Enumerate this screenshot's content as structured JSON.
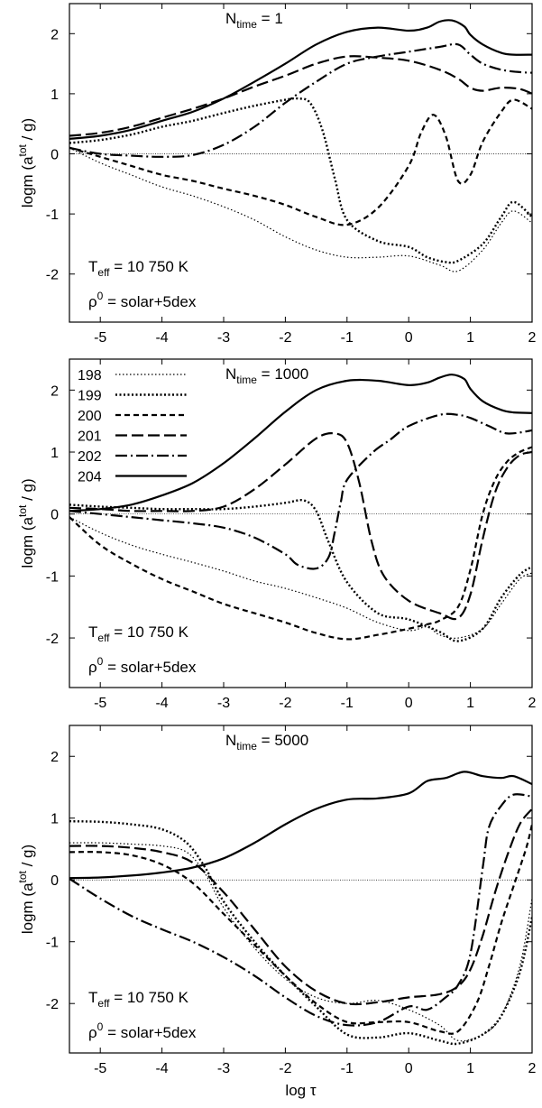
{
  "chart_data": [
    {
      "type": "line",
      "title_main": "N",
      "title_sub": "time",
      "title_tail": " = 1",
      "xlim": [
        -5.5,
        2
      ],
      "ylim": [
        -2.8,
        2.5
      ],
      "xticks": [
        "-5",
        "-4",
        "-3",
        "-2",
        "-1",
        "0",
        "1",
        "2"
      ],
      "yticks": [
        "-2",
        "-1",
        "0",
        "1",
        "2"
      ],
      "ylabel_main": "logm (a",
      "ylabel_sup": "tot",
      "ylabel_tail": " / g)",
      "xlabel_main": "",
      "xlabel_greek": "",
      "annot_teff": {
        "main": "T",
        "sub": "eff",
        "tail": " = 10 750 K"
      },
      "annot_rho": {
        "main": "ρ",
        "sup": "0",
        "tail": " = solar+5dex"
      },
      "legend": [],
      "series": [
        {
          "name": "198",
          "x": [
            -5.5,
            -5,
            -4.5,
            -4,
            -3.5,
            -3,
            -2.5,
            -2,
            -1.5,
            -1,
            -0.5,
            0,
            0.5,
            0.8,
            1.2,
            1.5,
            1.7,
            2
          ],
          "y": [
            0.1,
            -0.15,
            -0.35,
            -0.55,
            -0.7,
            -0.88,
            -1.1,
            -1.38,
            -1.6,
            -1.72,
            -1.72,
            -1.7,
            -1.85,
            -1.95,
            -1.6,
            -1.15,
            -0.95,
            -1.15
          ]
        },
        {
          "name": "199",
          "x": [
            -5.5,
            -5,
            -4.5,
            -4,
            -3.5,
            -3,
            -2.5,
            -2,
            -1.8,
            -1.6,
            -1.4,
            -1.2,
            -1,
            -0.5,
            0,
            0.3,
            0.6,
            0.8,
            1.2,
            1.5,
            1.7,
            2
          ],
          "y": [
            0.18,
            0.23,
            0.32,
            0.45,
            0.55,
            0.68,
            0.8,
            0.9,
            0.92,
            0.85,
            0.4,
            -0.4,
            -1.1,
            -1.45,
            -1.55,
            -1.72,
            -1.8,
            -1.78,
            -1.5,
            -1.05,
            -0.8,
            -1.05
          ]
        },
        {
          "name": "200",
          "x": [
            -5.5,
            -5,
            -4.5,
            -4,
            -3.5,
            -3,
            -2.5,
            -2,
            -1.5,
            -1,
            -0.5,
            0,
            0.2,
            0.4,
            0.6,
            0.8,
            1,
            1.2,
            1.5,
            1.7,
            2
          ],
          "y": [
            0.1,
            -0.05,
            -0.2,
            -0.35,
            -0.45,
            -0.58,
            -0.7,
            -0.85,
            -1.05,
            -1.18,
            -0.9,
            -0.2,
            0.35,
            0.65,
            0.3,
            -0.45,
            -0.35,
            0.2,
            0.7,
            0.9,
            0.75
          ]
        },
        {
          "name": "201",
          "x": [
            -5.5,
            -5,
            -4.5,
            -4,
            -3.5,
            -3,
            -2.5,
            -2,
            -1.5,
            -1,
            -0.5,
            0,
            0.5,
            0.8,
            1,
            1.2,
            1.5,
            1.8,
            2
          ],
          "y": [
            0.3,
            0.35,
            0.45,
            0.6,
            0.75,
            0.92,
            1.12,
            1.3,
            1.5,
            1.62,
            1.6,
            1.55,
            1.4,
            1.25,
            1.1,
            1.05,
            1.1,
            1.08,
            1.0
          ]
        },
        {
          "name": "202",
          "x": [
            -5.5,
            -5,
            -4.5,
            -4,
            -3.5,
            -3,
            -2.5,
            -2,
            -1.5,
            -1,
            -0.5,
            0,
            0.5,
            0.8,
            1,
            1.2,
            1.5,
            1.8,
            2
          ],
          "y": [
            0.1,
            0.0,
            -0.03,
            -0.05,
            -0.02,
            0.15,
            0.45,
            0.85,
            1.2,
            1.5,
            1.62,
            1.7,
            1.78,
            1.82,
            1.65,
            1.5,
            1.4,
            1.36,
            1.35
          ]
        },
        {
          "name": "204",
          "x": [
            -5.5,
            -5,
            -4.5,
            -4,
            -3.5,
            -3,
            -2.5,
            -2,
            -1.5,
            -1,
            -0.5,
            0,
            0.3,
            0.5,
            0.7,
            0.9,
            1,
            1.2,
            1.5,
            1.7,
            2
          ],
          "y": [
            0.25,
            0.3,
            0.4,
            0.55,
            0.7,
            0.92,
            1.2,
            1.5,
            1.82,
            2.03,
            2.1,
            2.05,
            2.1,
            2.2,
            2.22,
            2.12,
            1.98,
            1.82,
            1.68,
            1.65,
            1.65
          ]
        }
      ]
    },
    {
      "type": "line",
      "title_main": "N",
      "title_sub": "time",
      "title_tail": " = 1000",
      "xlim": [
        -5.5,
        2
      ],
      "ylim": [
        -2.8,
        2.5
      ],
      "xticks": [
        "-5",
        "-4",
        "-3",
        "-2",
        "-1",
        "0",
        "1",
        "2"
      ],
      "yticks": [
        "-2",
        "-1",
        "0",
        "1",
        "2"
      ],
      "ylabel_main": "logm (a",
      "ylabel_sup": "tot",
      "ylabel_tail": " / g)",
      "xlabel_main": "",
      "xlabel_greek": "",
      "annot_teff": {
        "main": "T",
        "sub": "eff",
        "tail": " = 10 750 K"
      },
      "annot_rho": {
        "main": "ρ",
        "sup": "0",
        "tail": " = solar+5dex"
      },
      "legend": [
        "198",
        "199",
        "200",
        "201",
        "202",
        "204"
      ],
      "series": [
        {
          "name": "198",
          "x": [
            -5.5,
            -5,
            -4.5,
            -4,
            -3.5,
            -3,
            -2.5,
            -2,
            -1.5,
            -1,
            -0.5,
            0,
            0.3,
            0.5,
            0.8,
            1.2,
            1.5,
            1.8,
            2
          ],
          "y": [
            -0.05,
            -0.3,
            -0.5,
            -0.65,
            -0.78,
            -0.92,
            -1.08,
            -1.2,
            -1.35,
            -1.52,
            -1.75,
            -1.88,
            -1.82,
            -1.95,
            -2.0,
            -1.85,
            -1.45,
            -1.05,
            -0.95
          ]
        },
        {
          "name": "199",
          "x": [
            -5.5,
            -5,
            -4.5,
            -4,
            -3.5,
            -3,
            -2.5,
            -2,
            -1.7,
            -1.5,
            -1.3,
            -1,
            -0.5,
            0,
            0.5,
            0.8,
            1.2,
            1.5,
            1.8,
            2
          ],
          "y": [
            0.15,
            0.12,
            0.1,
            0.08,
            0.08,
            0.08,
            0.12,
            0.18,
            0.22,
            0.05,
            -0.45,
            -1.1,
            -1.6,
            -1.7,
            -1.9,
            -2.05,
            -1.85,
            -1.35,
            -0.98,
            -0.85
          ]
        },
        {
          "name": "200",
          "x": [
            -5.5,
            -5,
            -4.5,
            -4,
            -3.5,
            -3,
            -2.5,
            -2,
            -1.5,
            -1,
            -0.5,
            0,
            0.3,
            0.5,
            0.8,
            1,
            1.2,
            1.4,
            1.6,
            1.8,
            2
          ],
          "y": [
            -0.05,
            -0.5,
            -0.8,
            -1.05,
            -1.25,
            -1.45,
            -1.6,
            -1.75,
            -1.92,
            -2.02,
            -1.95,
            -1.85,
            -1.78,
            -1.72,
            -1.5,
            -0.9,
            0.0,
            0.55,
            0.85,
            1.0,
            1.08
          ]
        },
        {
          "name": "201",
          "x": [
            -5.5,
            -5,
            -4.5,
            -4,
            -3.5,
            -3,
            -2.5,
            -2,
            -1.5,
            -1.2,
            -1,
            -0.8,
            -0.6,
            -0.4,
            0,
            0.5,
            0.8,
            1,
            1.2,
            1.4,
            1.6,
            1.8,
            2
          ],
          "y": [
            0.1,
            0.08,
            0.05,
            0.05,
            0.05,
            0.12,
            0.4,
            0.8,
            1.22,
            1.3,
            1.15,
            0.5,
            -0.45,
            -1.0,
            -1.4,
            -1.6,
            -1.68,
            -1.3,
            -0.4,
            0.35,
            0.75,
            0.95,
            1.0
          ]
        },
        {
          "name": "202",
          "x": [
            -5.5,
            -5,
            -4.5,
            -4,
            -3.5,
            -3,
            -2.5,
            -2,
            -1.8,
            -1.5,
            -1.3,
            -1.2,
            -1.1,
            -1,
            -0.6,
            -0.3,
            0,
            0.5,
            0.8,
            1,
            1.3,
            1.6,
            2
          ],
          "y": [
            0.05,
            0.0,
            -0.05,
            -0.1,
            -0.15,
            -0.22,
            -0.38,
            -0.65,
            -0.82,
            -0.88,
            -0.7,
            -0.3,
            0.2,
            0.55,
            0.98,
            1.2,
            1.42,
            1.6,
            1.6,
            1.55,
            1.42,
            1.3,
            1.35
          ]
        },
        {
          "name": "204",
          "x": [
            -5.5,
            -5,
            -4.5,
            -4,
            -3.5,
            -3,
            -2.5,
            -2,
            -1.5,
            -1,
            -0.5,
            0,
            0.3,
            0.5,
            0.7,
            0.9,
            1,
            1.2,
            1.5,
            1.7,
            2
          ],
          "y": [
            0.05,
            0.08,
            0.15,
            0.3,
            0.5,
            0.82,
            1.22,
            1.65,
            2.0,
            2.15,
            2.15,
            2.08,
            2.12,
            2.2,
            2.25,
            2.18,
            2.02,
            1.82,
            1.68,
            1.64,
            1.63
          ]
        }
      ]
    },
    {
      "type": "line",
      "title_main": "N",
      "title_sub": "time",
      "title_tail": " = 5000",
      "xlim": [
        -5.5,
        2
      ],
      "ylim": [
        -2.8,
        2.5
      ],
      "xticks": [
        "-5",
        "-4",
        "-3",
        "-2",
        "-1",
        "0",
        "1",
        "2"
      ],
      "yticks": [
        "-2",
        "-1",
        "0",
        "1",
        "2"
      ],
      "ylabel_main": "logm (a",
      "ylabel_sup": "tot",
      "ylabel_tail": " / g)",
      "xlabel_main": "log ",
      "xlabel_greek": "τ",
      "annot_teff": {
        "main": "T",
        "sub": "eff",
        "tail": " = 10 750 K"
      },
      "annot_rho": {
        "main": "ρ",
        "sup": "0",
        "tail": " = solar+5dex"
      },
      "legend": [],
      "series": [
        {
          "name": "198",
          "x": [
            -5.5,
            -5,
            -4.5,
            -4,
            -3.6,
            -3.3,
            -3,
            -2.5,
            -2,
            -1.5,
            -1,
            -0.5,
            0,
            0.5,
            0.8,
            1.2,
            1.5,
            1.8,
            2
          ],
          "y": [
            0.6,
            0.6,
            0.58,
            0.55,
            0.45,
            0.1,
            -0.45,
            -1.1,
            -1.6,
            -1.9,
            -2.0,
            -1.95,
            -2.1,
            -2.35,
            -2.6,
            -2.5,
            -2.2,
            -1.4,
            -0.3
          ]
        },
        {
          "name": "199",
          "x": [
            -5.5,
            -5,
            -4.5,
            -4,
            -3.6,
            -3.3,
            -3,
            -2.5,
            -2,
            -1.5,
            -1,
            -0.5,
            0,
            0.5,
            0.8,
            1.2,
            1.5,
            1.8,
            2
          ],
          "y": [
            0.95,
            0.94,
            0.9,
            0.82,
            0.6,
            0.2,
            -0.35,
            -1.0,
            -1.55,
            -2.05,
            -2.5,
            -2.55,
            -2.48,
            -2.6,
            -2.65,
            -2.5,
            -2.2,
            -1.5,
            -0.6
          ]
        },
        {
          "name": "200",
          "x": [
            -5.5,
            -5,
            -4.5,
            -4,
            -3.5,
            -3,
            -2.5,
            -2,
            -1.5,
            -1,
            -0.5,
            0,
            0.5,
            0.8,
            1.1,
            1.3,
            1.5,
            1.7,
            1.9,
            2
          ],
          "y": [
            0.45,
            0.45,
            0.4,
            0.25,
            -0.05,
            -0.55,
            -1.05,
            -1.55,
            -2.0,
            -2.3,
            -2.3,
            -2.3,
            -2.45,
            -2.45,
            -2.0,
            -1.4,
            -0.7,
            -0.1,
            0.5,
            0.9
          ]
        },
        {
          "name": "201",
          "x": [
            -5.5,
            -5,
            -4.5,
            -4,
            -3.5,
            -3,
            -2.5,
            -2,
            -1.5,
            -1,
            -0.5,
            0,
            0.5,
            0.8,
            1,
            1.2,
            1.4,
            1.6,
            1.8,
            2
          ],
          "y": [
            0.55,
            0.55,
            0.52,
            0.45,
            0.28,
            -0.2,
            -0.8,
            -1.4,
            -1.8,
            -2.0,
            -1.98,
            -1.9,
            -1.85,
            -1.72,
            -1.45,
            -0.9,
            -0.2,
            0.4,
            0.9,
            1.15
          ]
        },
        {
          "name": "202",
          "x": [
            -5.5,
            -5,
            -4.5,
            -4,
            -3.5,
            -3,
            -2.5,
            -2,
            -1.5,
            -1,
            -0.5,
            0,
            0.3,
            0.6,
            0.8,
            1,
            1.2,
            1.3,
            1.5,
            1.7,
            2
          ],
          "y": [
            0.02,
            -0.3,
            -0.58,
            -0.8,
            -1.0,
            -1.25,
            -1.55,
            -1.9,
            -2.2,
            -2.35,
            -2.3,
            -2.05,
            -2.1,
            -1.9,
            -1.7,
            -1.2,
            0.2,
            0.85,
            1.2,
            1.38,
            1.35
          ]
        },
        {
          "name": "204",
          "x": [
            -5.5,
            -5,
            -4.5,
            -4,
            -3.5,
            -3,
            -2.5,
            -2,
            -1.5,
            -1,
            -0.5,
            0,
            0.3,
            0.6,
            0.9,
            1.2,
            1.5,
            1.7,
            2
          ],
          "y": [
            0.03,
            0.04,
            0.07,
            0.12,
            0.2,
            0.35,
            0.6,
            0.9,
            1.15,
            1.3,
            1.32,
            1.4,
            1.6,
            1.65,
            1.75,
            1.68,
            1.65,
            1.68,
            1.55
          ]
        }
      ]
    }
  ],
  "styles": {
    "198": {
      "dash": "1.5 2.5",
      "width": 1.2
    },
    "199": {
      "dash": "2 2.5",
      "width": 2.4
    },
    "200": {
      "dash": "6 4",
      "width": 2.2
    },
    "201": {
      "dash": "13 5",
      "width": 2.2
    },
    "202": {
      "dash": "13 4 2 4",
      "width": 2.2
    },
    "204": {
      "dash": "",
      "width": 2.2
    }
  },
  "colors": {
    "line": "#000000",
    "zero_line": "#000000"
  }
}
